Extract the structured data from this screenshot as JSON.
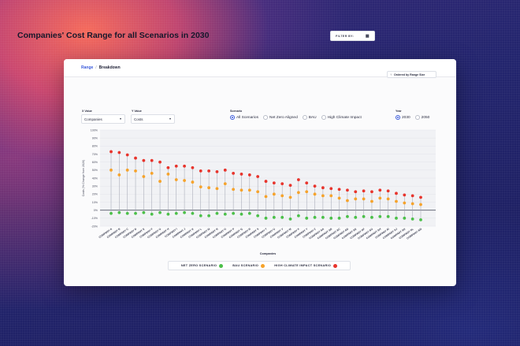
{
  "breadcrumb": {
    "range": "Range",
    "breakdown": "Breakdown"
  },
  "title": "Companies' Cost Range for all Scenarios in 2030",
  "filter": {
    "label": "FILTER BY:",
    "icon": "filter-grid-icon"
  },
  "x_value": {
    "label": "X Value",
    "selected": "Companies"
  },
  "y_value": {
    "label": "Y Value",
    "selected": "Costs"
  },
  "scenario": {
    "label": "Scenario",
    "options": [
      "All Scenarios",
      "Net Zero Aligned",
      "BAU",
      "High Climate Impact"
    ],
    "selected": "All Scenarios"
  },
  "year": {
    "label": "Year",
    "options": [
      "2030",
      "2050"
    ],
    "selected": "2030"
  },
  "ordered_by": "Ordered by Range Size",
  "colors": {
    "net_zero": "#4cc04a",
    "bau": "#f6a32b",
    "high": "#e8342c",
    "accent": "#3b5bdb"
  },
  "chart_data": {
    "type": "scatter",
    "title": "Companies' Cost Range for all Scenarios in 2030",
    "xlabel": "Companies",
    "ylabel": "Costs (% Change from 2020)",
    "ylim": [
      -20,
      100
    ],
    "yticks": [
      100,
      90,
      80,
      70,
      60,
      50,
      40,
      30,
      20,
      10,
      0,
      -10,
      -20
    ],
    "categories": [
      "COMPANY A",
      "COMPANY B",
      "COMPANY C",
      "COMPANY D",
      "COMPANY E",
      "COMPANY F",
      "COMPANY G",
      "COMPANY H",
      "COMPANY I",
      "COMPANY J",
      "COMPANY K",
      "COMPANY L",
      "COMPANY M",
      "COMPANY N",
      "COMPANY O",
      "COMPANY P",
      "COMPANY Q",
      "COMPANY R",
      "COMPANY S",
      "COMPANY T",
      "COMPANY U",
      "COMPANY V",
      "COMPANY W",
      "COMPANY X",
      "COMPANY Y",
      "COMPANY Z",
      "COMPANY AA",
      "COMPANY AB",
      "COMPANY AC",
      "COMPANY AD",
      "COMPANY AE",
      "COMPANY AF",
      "COMPANY AG",
      "COMPANY AH",
      "COMPANY AI",
      "COMPANY AJ",
      "COMPANY AK",
      "COMPANY AL",
      "COMPANY AM"
    ],
    "series": [
      {
        "name": "NET ZERO SCENARIO",
        "color": "#4cc04a",
        "values": [
          -4,
          -3,
          -4,
          -4,
          -3,
          -5,
          -3,
          -5,
          -4,
          -3,
          -4,
          -7,
          -7,
          -4,
          -5,
          -4,
          -5,
          -4,
          -7,
          -10,
          -9,
          -9,
          -11,
          -7,
          -10,
          -9,
          -9,
          -10,
          -10,
          -8,
          -9,
          -8,
          -9,
          -8,
          -8,
          -10,
          -10,
          -11,
          -12
        ]
      },
      {
        "name": "BAU SCENARIO",
        "color": "#f6a32b",
        "values": [
          50,
          44,
          50,
          49,
          42,
          46,
          36,
          45,
          38,
          37,
          35,
          29,
          28,
          27,
          33,
          26,
          25,
          25,
          23,
          17,
          20,
          18,
          16,
          22,
          23,
          20,
          18,
          18,
          15,
          12,
          14,
          14,
          11,
          15,
          14,
          11,
          9,
          8,
          7
        ]
      },
      {
        "name": "HIGH CLIMATE IMPACT SCENARIO",
        "color": "#e8342c",
        "values": [
          73,
          72,
          69,
          65,
          62,
          62,
          60,
          53,
          55,
          55,
          53,
          49,
          49,
          48,
          50,
          46,
          45,
          44,
          42,
          36,
          34,
          33,
          31,
          38,
          34,
          30,
          28,
          27,
          26,
          25,
          23,
          24,
          23,
          25,
          24,
          21,
          19,
          18,
          16
        ]
      }
    ],
    "legend_position": "bottom-center",
    "grid": true
  }
}
